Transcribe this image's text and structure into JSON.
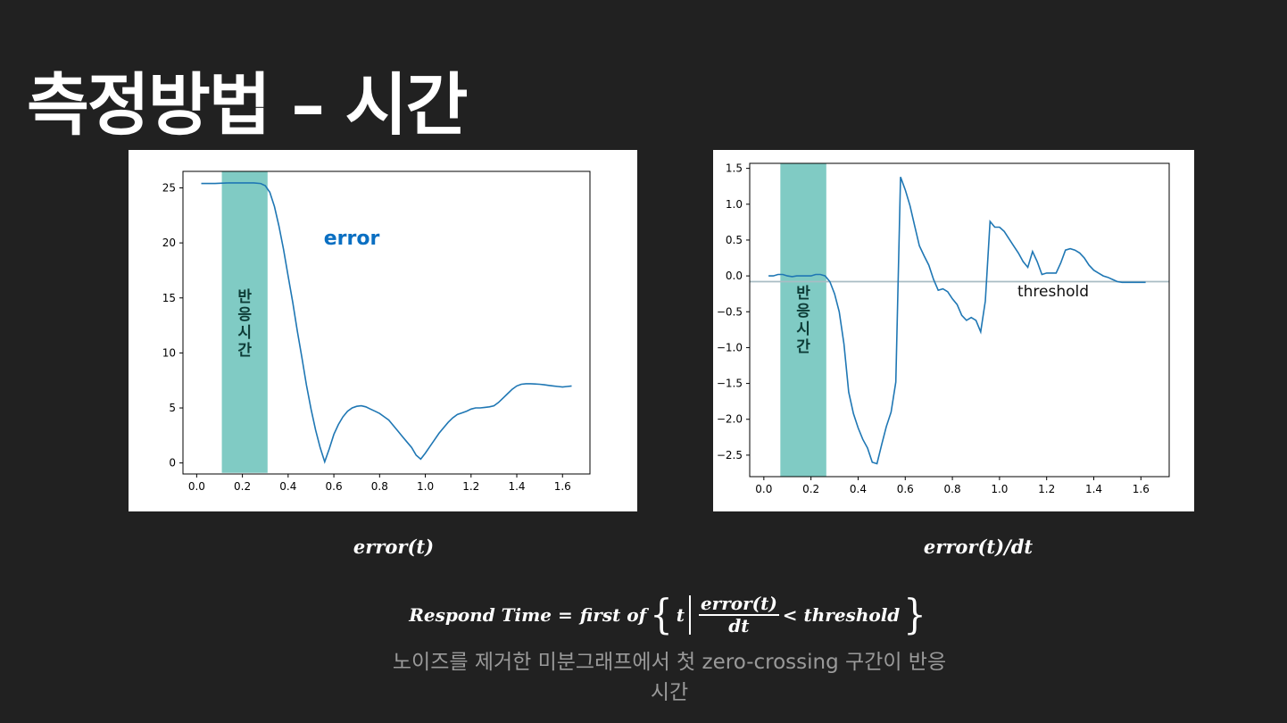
{
  "slide": {
    "title": "측정방법 – 시간",
    "caption_left": "error(t)",
    "caption_right": "error(t)/dt",
    "formula": {
      "lhs": "Respond Time =",
      "first_of": "first of",
      "t": "t",
      "numerator": "error(t)",
      "denominator": "dt",
      "condition": "< threshold"
    },
    "note": "노이즈를 제거한 미분그래프에서 첫 zero-crossing 구간이 반응 시간"
  },
  "colors": {
    "background": "#212121",
    "line": "#1f77b4",
    "band": "#80cbc4",
    "threshold_line": "#a9bcc4",
    "annotation_blue": "#0a6fc2"
  },
  "chart_data": [
    {
      "type": "line",
      "name": "error-chart",
      "xlim": [
        -0.06,
        1.72
      ],
      "ylim": [
        -1.0,
        26.5
      ],
      "xticks": [
        "0.0",
        "0.2",
        "0.4",
        "0.6",
        "0.8",
        "1.0",
        "1.2",
        "1.4",
        "1.6"
      ],
      "yticks": [
        "0",
        "5",
        "10",
        "15",
        "20",
        "25"
      ],
      "xtick_values": [
        0,
        0.2,
        0.4,
        0.6,
        0.8,
        1.0,
        1.2,
        1.4,
        1.6
      ],
      "ytick_values": [
        0,
        5,
        10,
        15,
        20,
        25
      ],
      "annotation": "error",
      "band_label": "반응시간",
      "band": {
        "x0": 0.11,
        "x1": 0.31,
        "y0": -0.9,
        "y1": 26.5
      },
      "x": [
        0.02,
        0.08,
        0.14,
        0.2,
        0.25,
        0.28,
        0.3,
        0.32,
        0.34,
        0.36,
        0.38,
        0.4,
        0.42,
        0.44,
        0.46,
        0.48,
        0.5,
        0.52,
        0.54,
        0.56,
        0.58,
        0.6,
        0.62,
        0.64,
        0.66,
        0.68,
        0.7,
        0.72,
        0.74,
        0.76,
        0.78,
        0.8,
        0.82,
        0.84,
        0.86,
        0.88,
        0.9,
        0.92,
        0.94,
        0.96,
        0.98,
        1.0,
        1.02,
        1.04,
        1.06,
        1.08,
        1.1,
        1.12,
        1.14,
        1.16,
        1.18,
        1.2,
        1.22,
        1.24,
        1.26,
        1.28,
        1.3,
        1.32,
        1.34,
        1.36,
        1.38,
        1.4,
        1.42,
        1.44,
        1.46,
        1.48,
        1.5,
        1.52,
        1.54,
        1.56,
        1.58,
        1.6,
        1.62,
        1.64
      ],
      "y": [
        25.4,
        25.4,
        25.45,
        25.45,
        25.45,
        25.4,
        25.2,
        24.6,
        23.3,
        21.5,
        19.4,
        17.0,
        14.6,
        12.0,
        9.6,
        7.1,
        4.9,
        3.0,
        1.4,
        0.1,
        1.3,
        2.6,
        3.5,
        4.2,
        4.7,
        5.0,
        5.15,
        5.2,
        5.1,
        4.9,
        4.7,
        4.5,
        4.2,
        3.9,
        3.4,
        2.9,
        2.4,
        1.9,
        1.4,
        0.7,
        0.35,
        0.9,
        1.5,
        2.1,
        2.7,
        3.2,
        3.7,
        4.1,
        4.4,
        4.55,
        4.7,
        4.9,
        5.0,
        5.0,
        5.05,
        5.1,
        5.2,
        5.5,
        5.9,
        6.3,
        6.7,
        7.0,
        7.15,
        7.2,
        7.2,
        7.18,
        7.15,
        7.1,
        7.05,
        7.0,
        6.95,
        6.9,
        6.95,
        7.0
      ]
    },
    {
      "type": "line",
      "name": "derivative-chart",
      "xlim": [
        -0.06,
        1.72
      ],
      "ylim": [
        -2.8,
        1.57
      ],
      "xticks": [
        "0.0",
        "0.2",
        "0.4",
        "0.6",
        "0.8",
        "1.0",
        "1.2",
        "1.4",
        "1.6"
      ],
      "yticks": [
        "1.5",
        "1.0",
        "0.5",
        "0.0",
        "−0.5",
        "−1.0",
        "−1.5",
        "−2.0",
        "−2.5"
      ],
      "xtick_values": [
        0,
        0.2,
        0.4,
        0.6,
        0.8,
        1.0,
        1.2,
        1.4,
        1.6
      ],
      "ytick_values": [
        1.5,
        1.0,
        0.5,
        0.0,
        -0.5,
        -1.0,
        -1.5,
        -2.0,
        -2.5
      ],
      "threshold": -0.08,
      "threshold_label": "threshold",
      "band_label": "반응시간",
      "band": {
        "x0": 0.07,
        "x1": 0.265,
        "y0": -2.8,
        "y1": 1.57
      },
      "x": [
        0.02,
        0.04,
        0.06,
        0.08,
        0.1,
        0.12,
        0.14,
        0.16,
        0.18,
        0.2,
        0.22,
        0.24,
        0.26,
        0.28,
        0.3,
        0.32,
        0.34,
        0.36,
        0.38,
        0.4,
        0.42,
        0.44,
        0.46,
        0.48,
        0.5,
        0.52,
        0.54,
        0.56,
        0.58,
        0.6,
        0.62,
        0.64,
        0.66,
        0.68,
        0.7,
        0.72,
        0.74,
        0.76,
        0.78,
        0.8,
        0.82,
        0.84,
        0.86,
        0.88,
        0.9,
        0.92,
        0.94,
        0.96,
        0.98,
        1.0,
        1.02,
        1.04,
        1.06,
        1.08,
        1.1,
        1.12,
        1.14,
        1.16,
        1.18,
        1.2,
        1.22,
        1.24,
        1.26,
        1.28,
        1.3,
        1.32,
        1.34,
        1.36,
        1.38,
        1.4,
        1.42,
        1.44,
        1.46,
        1.48,
        1.5,
        1.52,
        1.54,
        1.56,
        1.58,
        1.6,
        1.62
      ],
      "y": [
        0.0,
        0.0,
        0.02,
        0.02,
        0.0,
        -0.01,
        0.0,
        0.0,
        0.0,
        0.0,
        0.02,
        0.02,
        0.0,
        -0.08,
        -0.25,
        -0.5,
        -0.95,
        -1.62,
        -1.92,
        -2.12,
        -2.28,
        -2.4,
        -2.6,
        -2.62,
        -2.35,
        -2.1,
        -1.9,
        -1.48,
        1.38,
        1.2,
        0.98,
        0.7,
        0.42,
        0.28,
        0.15,
        -0.05,
        -0.2,
        -0.18,
        -0.22,
        -0.32,
        -0.4,
        -0.55,
        -0.62,
        -0.58,
        -0.62,
        -0.78,
        -0.35,
        0.76,
        0.68,
        0.68,
        0.62,
        0.52,
        0.42,
        0.32,
        0.2,
        0.12,
        0.34,
        0.2,
        0.02,
        0.04,
        0.04,
        0.04,
        0.18,
        0.36,
        0.38,
        0.36,
        0.32,
        0.25,
        0.15,
        0.08,
        0.04,
        0.0,
        -0.02,
        -0.05,
        -0.08,
        -0.09,
        -0.09,
        -0.09,
        -0.09,
        -0.09,
        -0.09
      ]
    }
  ]
}
